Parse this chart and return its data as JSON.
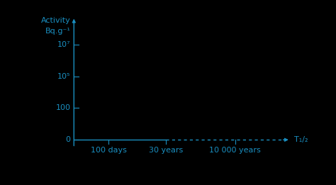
{
  "background_color": "#000000",
  "axis_color": "#1a8fc1",
  "ylabel_line1": "Activity",
  "ylabel_line2": "Bq.g⁻¹",
  "xlabel_label": "T₁/₂",
  "ytick_labels": [
    "0",
    "100",
    "10⁵",
    "10⁷"
  ],
  "ytick_positions": [
    0,
    1,
    2,
    3
  ],
  "xtick_labels": [
    "100 days",
    "30 years",
    "10 000 years"
  ],
  "xtick_positions": [
    1.5,
    4.0,
    7.0
  ],
  "solid_end_x": 4.0,
  "dashed_end_x": 9.0,
  "axis_color_hex": "#1a8fc1",
  "font_size_ticks": 8,
  "font_size_label": 8,
  "xmin": 0,
  "xmax": 10.5,
  "ymin": -0.55,
  "ymax": 4.0
}
